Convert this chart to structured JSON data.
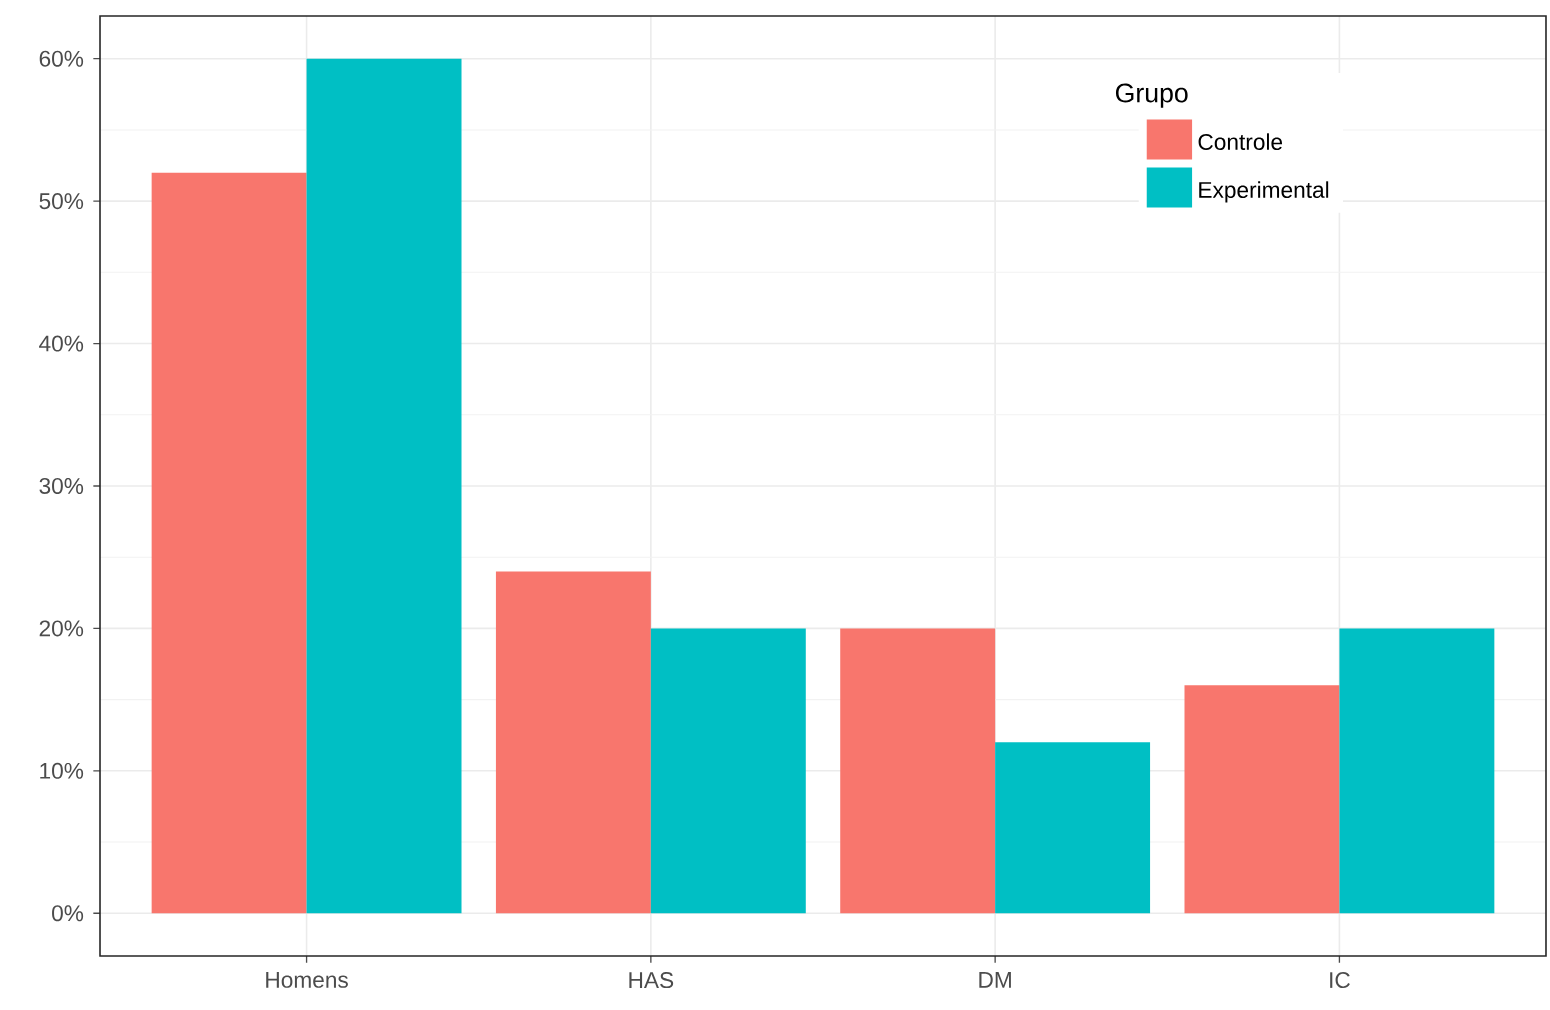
{
  "chart_data": {
    "type": "bar",
    "categories": [
      "Homens",
      "HAS",
      "DM",
      "IC"
    ],
    "series": [
      {
        "name": "Controle",
        "color": "#f8766d",
        "values": [
          52,
          24,
          20,
          16
        ]
      },
      {
        "name": "Experimental",
        "color": "#00bfc4",
        "values": [
          60,
          20,
          12,
          20
        ]
      }
    ],
    "legend_title": "Grupo",
    "legend": "top right",
    "grid": true,
    "ylim": [
      -3,
      63
    ],
    "yticks": [
      {
        "value": 0,
        "label": "0%"
      },
      {
        "value": 10,
        "label": "10%"
      },
      {
        "value": 20,
        "label": "20%"
      },
      {
        "value": 30,
        "label": "30%"
      },
      {
        "value": 40,
        "label": "40%"
      },
      {
        "value": 50,
        "label": "50%"
      },
      {
        "value": 60,
        "label": "60%"
      }
    ]
  }
}
